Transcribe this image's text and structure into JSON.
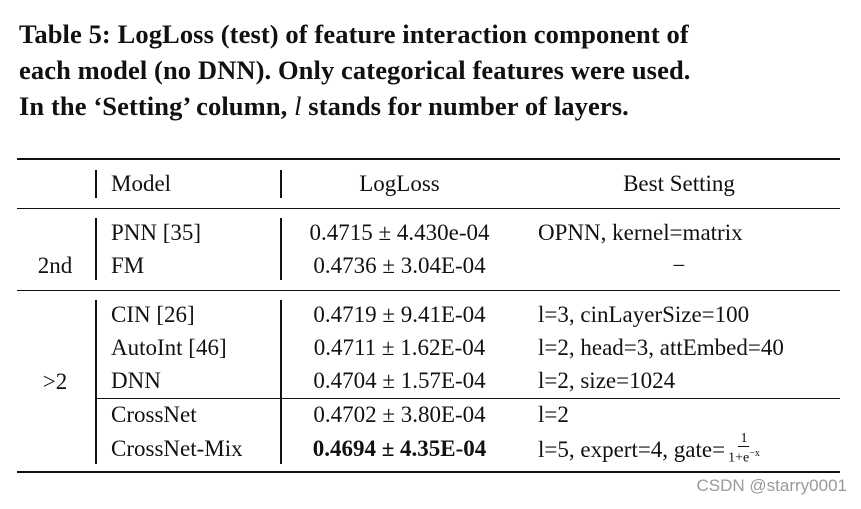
{
  "caption": {
    "line1": "Table 5: LogLoss (test) of feature interaction component of",
    "line2": "each model (no DNN). Only categorical features were used.",
    "line3_pre": "In the ‘Setting’ column, ",
    "line3_var": "l",
    "line3_post": " stands for number of layers."
  },
  "table": {
    "headers": {
      "group": "",
      "model": "Model",
      "logloss": "LogLoss",
      "setting": "Best Setting"
    },
    "groups": [
      {
        "label": "2nd",
        "rows": [
          {
            "model": "PNN [35]",
            "logloss": "0.4715 ± 4.430e-04",
            "setting": "OPNN, kernel=matrix"
          },
          {
            "model": "FM",
            "logloss": "0.4736 ± 3.04E-04",
            "setting": "−"
          }
        ]
      },
      {
        "label": ">2",
        "rows": [
          {
            "model": "CIN [26]",
            "logloss": "0.4719 ± 9.41E-04",
            "setting": "l=3, cinLayerSize=100"
          },
          {
            "model": "AutoInt [46]",
            "logloss": "0.4711 ± 1.62E-04",
            "setting": "l=2, head=3, attEmbed=40"
          },
          {
            "model": "DNN",
            "logloss": "0.4704 ± 1.57E-04",
            "setting": "l=2, size=1024"
          },
          {
            "model": "CrossNet",
            "logloss": "0.4702 ± 3.80E-04",
            "setting": "l=2"
          },
          {
            "model": "CrossNet-Mix",
            "logloss": "0.4694 ± 4.35E-04",
            "setting_pre": "l=5, expert=4, gate=",
            "frac_num": "1",
            "frac_den": "1+e",
            "frac_exp": "−x"
          }
        ]
      }
    ]
  },
  "watermark": "CSDN @starry0001"
}
